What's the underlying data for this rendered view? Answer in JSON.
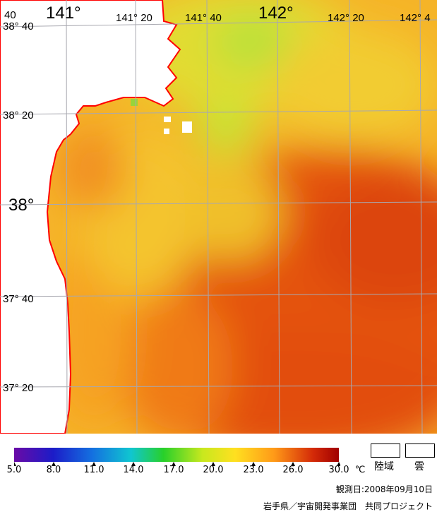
{
  "map": {
    "lon_labels": [
      {
        "text": "141°",
        "size": "big"
      },
      {
        "text": "141° 20",
        "size": "mid"
      },
      {
        "text": "141° 40",
        "size": "mid"
      },
      {
        "text": "142°",
        "size": "big"
      },
      {
        "text": "142° 20",
        "size": "mid"
      },
      {
        "text": "142° 4",
        "size": "mid"
      }
    ],
    "lat_labels": [
      {
        "text": "38° 40",
        "size": "mid"
      },
      {
        "text": "38° 20",
        "size": "mid"
      },
      {
        "text": "38°",
        "size": "big"
      },
      {
        "text": "37° 40",
        "size": "mid"
      },
      {
        "text": "37° 20",
        "size": "mid"
      }
    ],
    "colors": {
      "coast": "#ff0000",
      "land": "#ffffff",
      "grid": "#a8a8b0"
    }
  },
  "legend": {
    "unit": "℃",
    "ticks": [
      "5.0",
      "8.0",
      "11.0",
      "14.0",
      "17.0",
      "20.0",
      "23.0",
      "26.0",
      "30.0"
    ],
    "colors": [
      "#6a0aa6",
      "#1c1cc8",
      "#1470e0",
      "#10c6d0",
      "#28d02a",
      "#c8e81e",
      "#ffe020",
      "#ff9a18",
      "#d42a08",
      "#a00000"
    ],
    "land_label": "陸域",
    "cloud_label": "雲"
  },
  "footer": {
    "date": "観測日:2008年09月10日",
    "credit": "岩手県／宇宙開発事業団　共同プロジェクト"
  }
}
